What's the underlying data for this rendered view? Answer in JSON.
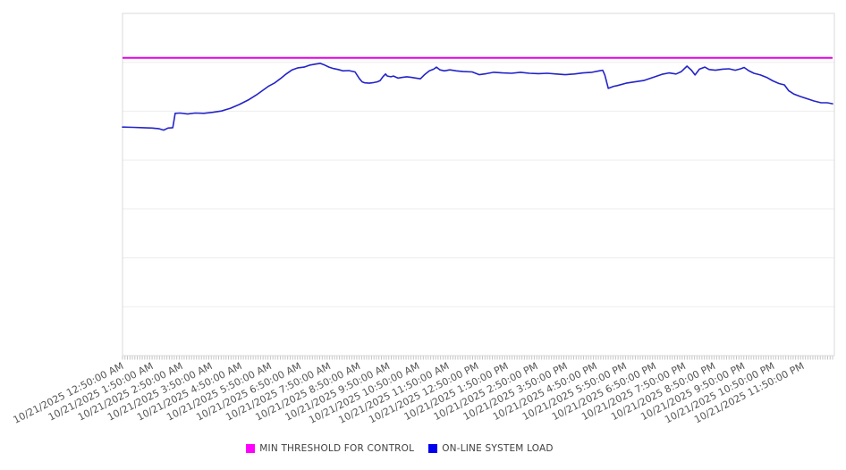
{
  "legend": {
    "items": [
      {
        "label": "MIN THRESHOLD FOR CONTROL",
        "color": "#ff00ff"
      },
      {
        "label": "ON-LINE SYSTEM LOAD",
        "color": "#0000ee"
      }
    ]
  },
  "chart_data": {
    "type": "line",
    "title": "",
    "xlabel": "",
    "ylabel": "",
    "grid": "horizontal",
    "legend_position": "bottom-center",
    "x_axis": {
      "tick_labels": [
        "10/21/2025 12:50:00 AM",
        "10/21/2025 1:50:00 AM",
        "10/21/2025 2:50:00 AM",
        "10/21/2025 3:50:00 AM",
        "10/21/2025 4:50:00 AM",
        "10/21/2025 5:50:00 AM",
        "10/21/2025 6:50:00 AM",
        "10/21/2025 7:50:00 AM",
        "10/21/2025 8:50:00 AM",
        "10/21/2025 9:50:00 AM",
        "10/21/2025 10:50:00 AM",
        "10/21/2025 11:50:00 AM",
        "10/21/2025 12:50:00 PM",
        "10/21/2025 1:50:00 PM",
        "10/21/2025 2:50:00 PM",
        "10/21/2025 3:50:00 PM",
        "10/21/2025 4:50:00 PM",
        "10/21/2025 5:50:00 PM",
        "10/21/2025 6:50:00 PM",
        "10/21/2025 7:50:00 PM",
        "10/21/2025 8:50:00 PM",
        "10/21/2025 9:50:00 PM",
        "10/21/2025 10:50:00 PM",
        "10/21/2025 11:50:00 PM"
      ],
      "minor_ticks_per_label": 12,
      "label_rotation_deg": -27
    },
    "y_axis": {
      "labels_visible": false,
      "range": [
        0,
        100
      ],
      "gridline_divisions": 7
    },
    "series": [
      {
        "name": "MIN THRESHOLD FOR CONTROL",
        "style": "threshold",
        "color": "#e600e6",
        "value": 87
      },
      {
        "name": "ON-LINE SYSTEM LOAD",
        "style": "line",
        "color": "#2323c8",
        "points": [
          [
            0.0,
            66.8
          ],
          [
            0.35,
            66.7
          ],
          [
            0.7,
            66.6
          ],
          [
            1.0,
            66.5
          ],
          [
            1.24,
            66.3
          ],
          [
            1.39,
            65.9
          ],
          [
            1.54,
            66.5
          ],
          [
            1.7,
            66.6
          ],
          [
            1.78,
            70.8
          ],
          [
            1.95,
            70.9
          ],
          [
            2.2,
            70.6
          ],
          [
            2.45,
            70.9
          ],
          [
            2.75,
            70.8
          ],
          [
            3.05,
            71.1
          ],
          [
            3.35,
            71.5
          ],
          [
            3.65,
            72.3
          ],
          [
            3.95,
            73.4
          ],
          [
            4.25,
            74.7
          ],
          [
            4.56,
            76.4
          ],
          [
            4.93,
            78.7
          ],
          [
            5.13,
            79.6
          ],
          [
            5.33,
            80.9
          ],
          [
            5.53,
            82.3
          ],
          [
            5.73,
            83.5
          ],
          [
            5.93,
            84.1
          ],
          [
            6.14,
            84.3
          ],
          [
            6.34,
            84.9
          ],
          [
            6.53,
            85.2
          ],
          [
            6.68,
            85.4
          ],
          [
            6.83,
            84.9
          ],
          [
            6.98,
            84.3
          ],
          [
            7.13,
            83.9
          ],
          [
            7.29,
            83.6
          ],
          [
            7.45,
            83.2
          ],
          [
            7.65,
            83.3
          ],
          [
            7.86,
            82.9
          ],
          [
            8.01,
            80.9
          ],
          [
            8.1,
            80.0
          ],
          [
            8.19,
            79.7
          ],
          [
            8.34,
            79.6
          ],
          [
            8.49,
            79.8
          ],
          [
            8.61,
            80.0
          ],
          [
            8.71,
            80.4
          ],
          [
            8.8,
            81.5
          ],
          [
            8.89,
            82.3
          ],
          [
            8.95,
            81.7
          ],
          [
            9.07,
            81.5
          ],
          [
            9.16,
            81.7
          ],
          [
            9.31,
            81.1
          ],
          [
            9.46,
            81.3
          ],
          [
            9.61,
            81.5
          ],
          [
            9.76,
            81.3
          ],
          [
            9.92,
            81.1
          ],
          [
            10.07,
            80.9
          ],
          [
            10.22,
            82.2
          ],
          [
            10.37,
            83.2
          ],
          [
            10.52,
            83.7
          ],
          [
            10.61,
            84.3
          ],
          [
            10.73,
            83.5
          ],
          [
            10.88,
            83.2
          ],
          [
            11.06,
            83.5
          ],
          [
            11.28,
            83.2
          ],
          [
            11.52,
            83.0
          ],
          [
            11.82,
            82.9
          ],
          [
            12.06,
            82.1
          ],
          [
            12.3,
            82.4
          ],
          [
            12.55,
            82.8
          ],
          [
            12.85,
            82.6
          ],
          [
            13.15,
            82.5
          ],
          [
            13.45,
            82.8
          ],
          [
            13.75,
            82.5
          ],
          [
            14.06,
            82.4
          ],
          [
            14.36,
            82.5
          ],
          [
            14.66,
            82.3
          ],
          [
            14.96,
            82.1
          ],
          [
            15.27,
            82.3
          ],
          [
            15.57,
            82.6
          ],
          [
            15.87,
            82.8
          ],
          [
            16.11,
            83.2
          ],
          [
            16.23,
            83.4
          ],
          [
            16.3,
            82.0
          ],
          [
            16.42,
            78.1
          ],
          [
            16.6,
            78.7
          ],
          [
            16.72,
            78.9
          ],
          [
            17.02,
            79.6
          ],
          [
            17.32,
            80.0
          ],
          [
            17.62,
            80.4
          ],
          [
            17.93,
            81.3
          ],
          [
            18.23,
            82.2
          ],
          [
            18.47,
            82.6
          ],
          [
            18.71,
            82.3
          ],
          [
            18.89,
            83.0
          ],
          [
            19.08,
            84.6
          ],
          [
            19.23,
            83.4
          ],
          [
            19.35,
            82.0
          ],
          [
            19.5,
            83.7
          ],
          [
            19.68,
            84.3
          ],
          [
            19.83,
            83.6
          ],
          [
            20.04,
            83.4
          ],
          [
            20.28,
            83.7
          ],
          [
            20.5,
            83.8
          ],
          [
            20.71,
            83.4
          ],
          [
            20.89,
            83.8
          ],
          [
            21.01,
            84.2
          ],
          [
            21.16,
            83.3
          ],
          [
            21.34,
            82.5
          ],
          [
            21.56,
            82.0
          ],
          [
            21.77,
            81.3
          ],
          [
            21.98,
            80.3
          ],
          [
            22.19,
            79.5
          ],
          [
            22.37,
            79.1
          ],
          [
            22.52,
            77.4
          ],
          [
            22.7,
            76.4
          ],
          [
            22.92,
            75.7
          ],
          [
            23.13,
            75.1
          ],
          [
            23.37,
            74.4
          ],
          [
            23.61,
            73.9
          ],
          [
            23.82,
            73.9
          ],
          [
            24.0,
            73.6
          ]
        ]
      }
    ]
  }
}
